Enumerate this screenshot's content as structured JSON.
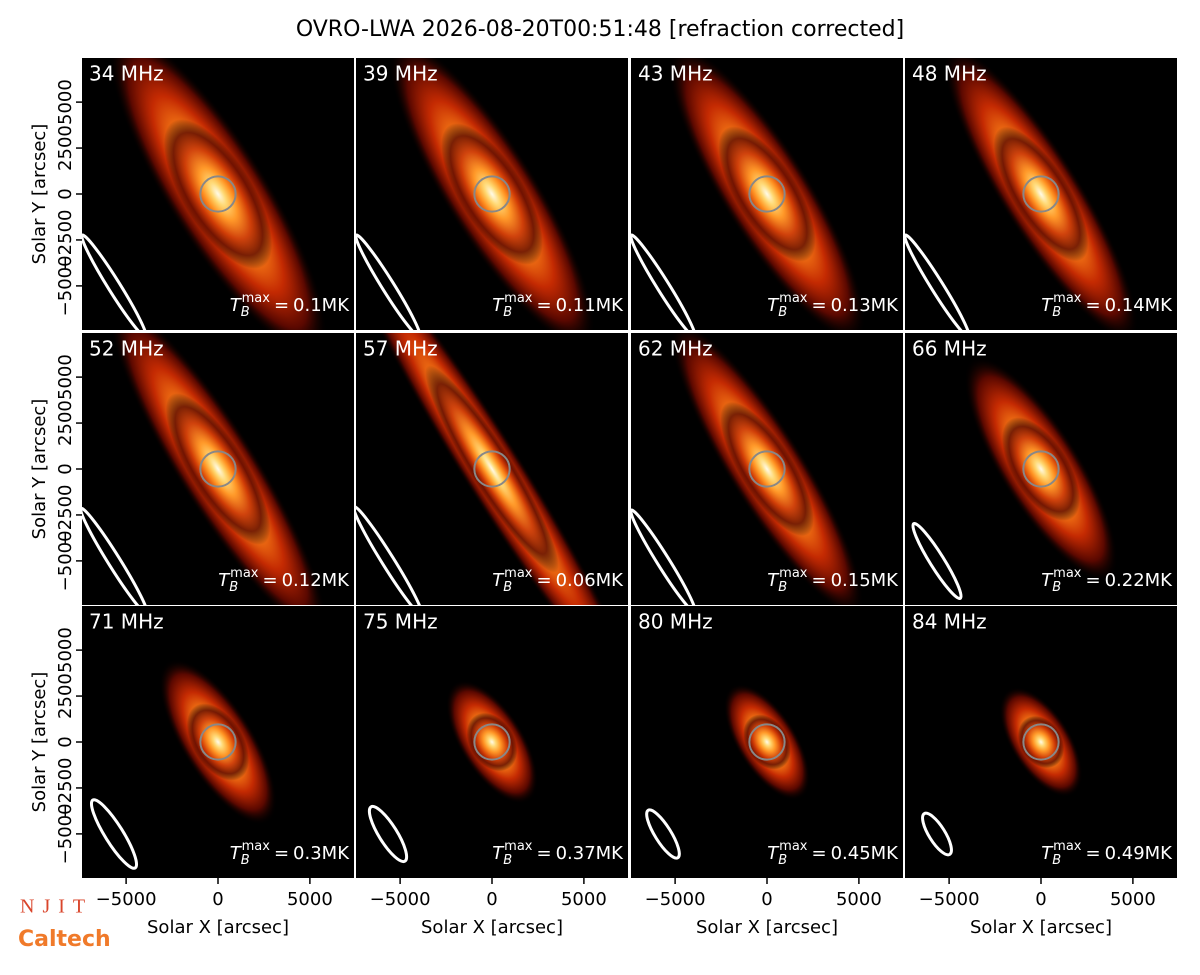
{
  "chart_data": {
    "type": "image_grid",
    "title": "OVRO-LWA 2026-08-20T00:51:48 [refraction corrected]",
    "xlabel": "Solar X [arcsec]",
    "ylabel": "Solar Y [arcsec]",
    "xlim": [
      -7400,
      7400
    ],
    "ylim": [
      -7400,
      7400
    ],
    "xticks": [
      {
        "value": -5000,
        "label": "−5000"
      },
      0,
      5000
    ],
    "yticks": [
      {
        "value": -5000,
        "label": "−5000"
      },
      {
        "value": -2500,
        "label": "−2500"
      },
      0,
      2500,
      5000
    ],
    "tb_symbol": {
      "base": "T",
      "sub": "B",
      "sup": "max",
      "eq": "="
    },
    "panels": [
      {
        "label": "34 MHz",
        "tb_max": "0.1MK"
      },
      {
        "label": "39 MHz",
        "tb_max": "0.11MK"
      },
      {
        "label": "43 MHz",
        "tb_max": "0.13MK"
      },
      {
        "label": "48 MHz",
        "tb_max": "0.14MK"
      },
      {
        "label": "52 MHz",
        "tb_max": "0.12MK"
      },
      {
        "label": "57 MHz",
        "tb_max": "0.06MK"
      },
      {
        "label": "62 MHz",
        "tb_max": "0.15MK"
      },
      {
        "label": "66 MHz",
        "tb_max": "0.22MK"
      },
      {
        "label": "71 MHz",
        "tb_max": "0.3MK"
      },
      {
        "label": "75 MHz",
        "tb_max": "0.37MK"
      },
      {
        "label": "80 MHz",
        "tb_max": "0.45MK"
      },
      {
        "label": "84 MHz",
        "tb_max": "0.49MK"
      }
    ]
  },
  "logos": [
    "NJIT",
    "Caltech"
  ]
}
